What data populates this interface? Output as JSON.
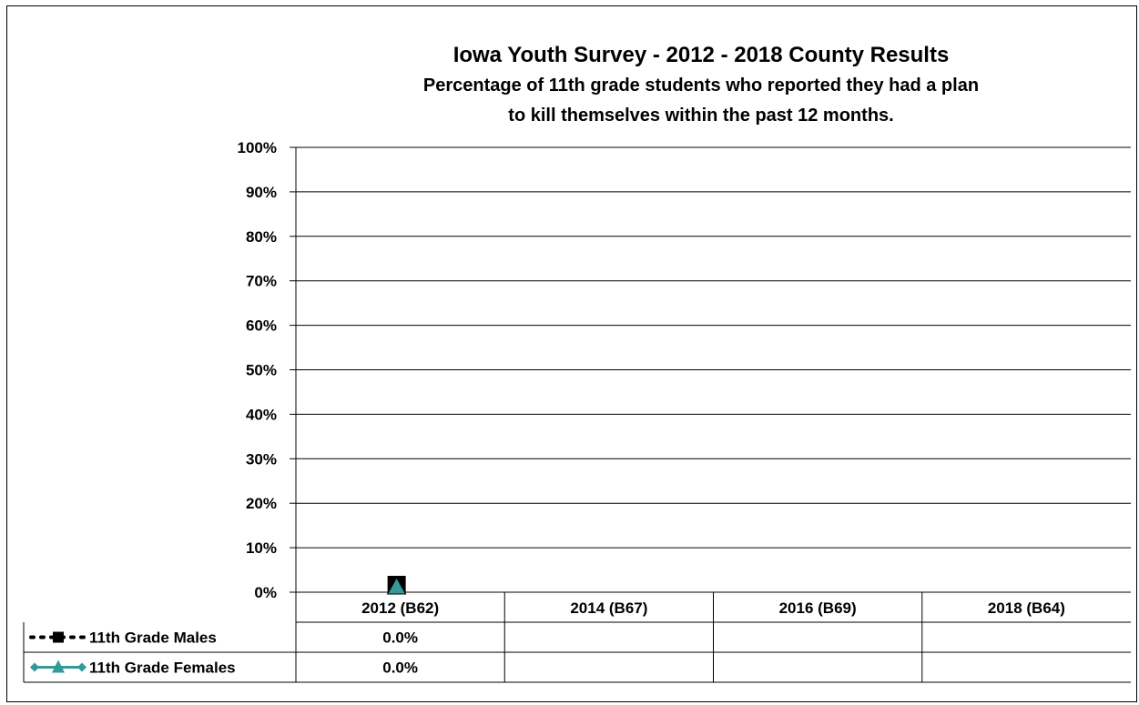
{
  "chart_data": {
    "type": "line",
    "title": "Iowa Youth Survey - 2012 - 2018 County Results",
    "subtitle_lines": [
      "Percentage of 11th grade students who reported they had a plan",
      "to kill themselves within the past 12 months."
    ],
    "categories": [
      "2012 (B62)",
      "2014 (B67)",
      "2016 (B69)",
      "2018 (B64)"
    ],
    "series": [
      {
        "name": "11th Grade Males",
        "values": [
          0.0,
          null,
          null,
          null
        ],
        "labels": [
          "0.0%",
          "",
          "",
          ""
        ],
        "color": "#000000",
        "marker": "square"
      },
      {
        "name": "11th Grade Females",
        "values": [
          0.0,
          null,
          null,
          null
        ],
        "labels": [
          "0.0%",
          "",
          "",
          ""
        ],
        "color": "#339999",
        "marker": "triangle"
      }
    ],
    "ylim": [
      0,
      100
    ],
    "yticks": [
      0,
      10,
      20,
      30,
      40,
      50,
      60,
      70,
      80,
      90,
      100
    ],
    "ytick_labels": [
      "0%",
      "10%",
      "20%",
      "30%",
      "40%",
      "50%",
      "60%",
      "70%",
      "80%",
      "90%",
      "100%"
    ],
    "grid": true,
    "legend": "data-table-bottom"
  }
}
